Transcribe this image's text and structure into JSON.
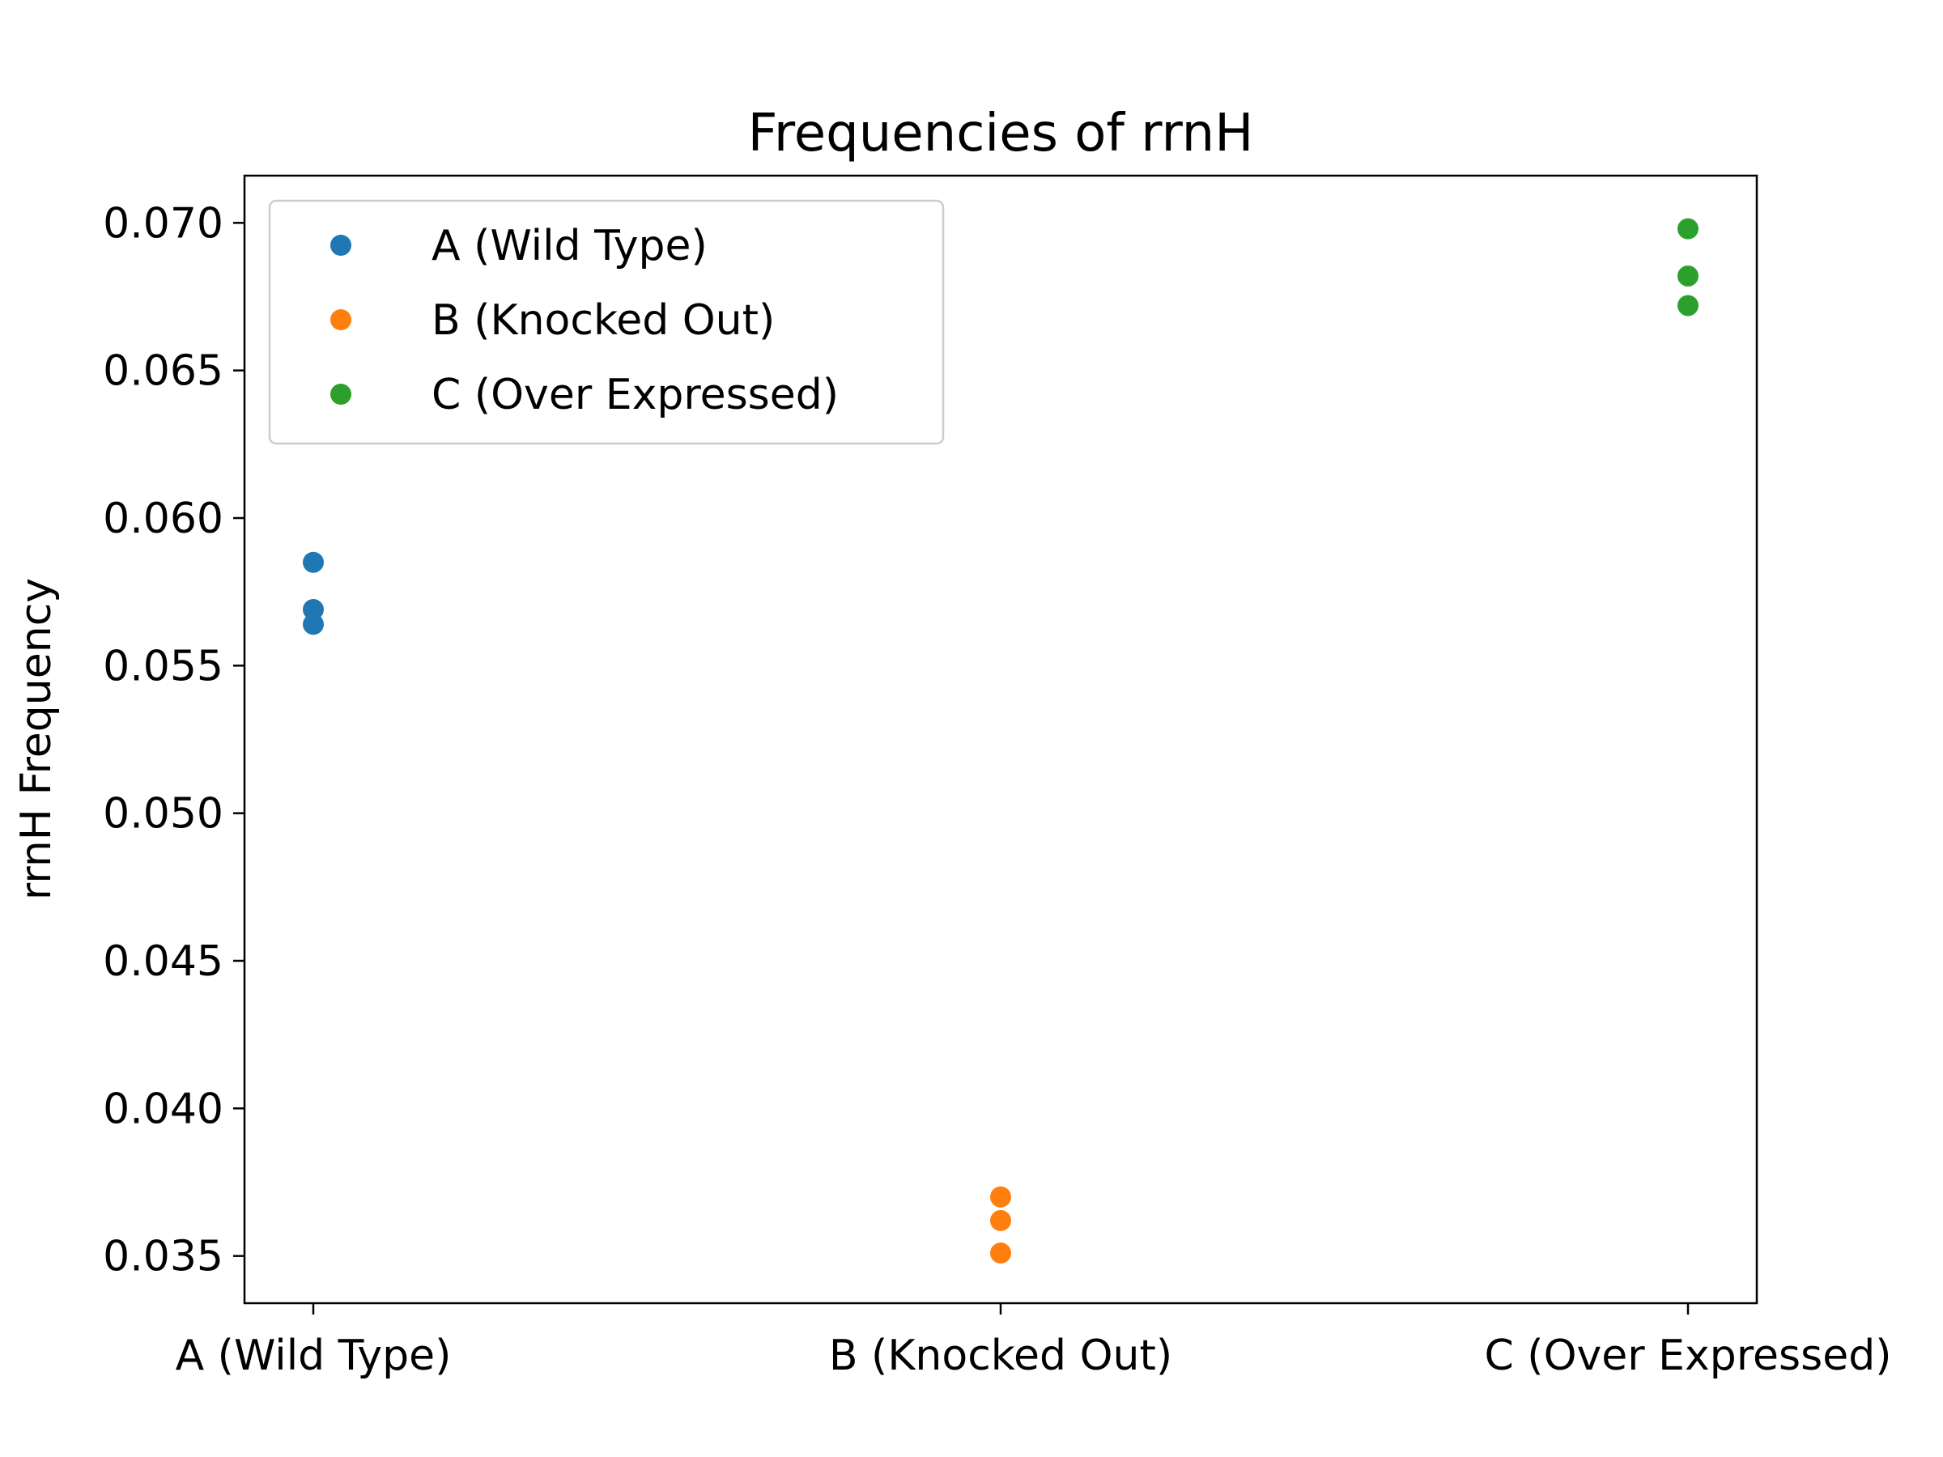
{
  "chart_data": {
    "type": "scatter",
    "title": "Frequencies of rrnH",
    "xlabel": "",
    "ylabel": "rrnH  Frequency",
    "categories": [
      "A (Wild Type)",
      "B (Knocked Out)",
      "C (Over Expressed)"
    ],
    "ylim": [
      0.0334,
      0.0716
    ],
    "yticks": [
      0.035,
      0.04,
      0.045,
      0.05,
      0.055,
      0.06,
      0.065,
      0.07
    ],
    "ytick_labels": [
      "0.035",
      "0.040",
      "0.045",
      "0.050",
      "0.055",
      "0.060",
      "0.065",
      "0.070"
    ],
    "grid": false,
    "legend_position": "top-left",
    "series": [
      {
        "name": "A (Wild Type)",
        "color": "#1f77b4",
        "category": "A (Wild Type)",
        "values": [
          0.0585,
          0.0569,
          0.0564
        ]
      },
      {
        "name": "B (Knocked Out)",
        "color": "#ff7f0e",
        "category": "B (Knocked Out)",
        "values": [
          0.037,
          0.0362,
          0.0351
        ]
      },
      {
        "name": "C (Over Expressed)",
        "color": "#2ca02c",
        "category": "C (Over Expressed)",
        "values": [
          0.0698,
          0.0682,
          0.0672
        ]
      }
    ]
  }
}
